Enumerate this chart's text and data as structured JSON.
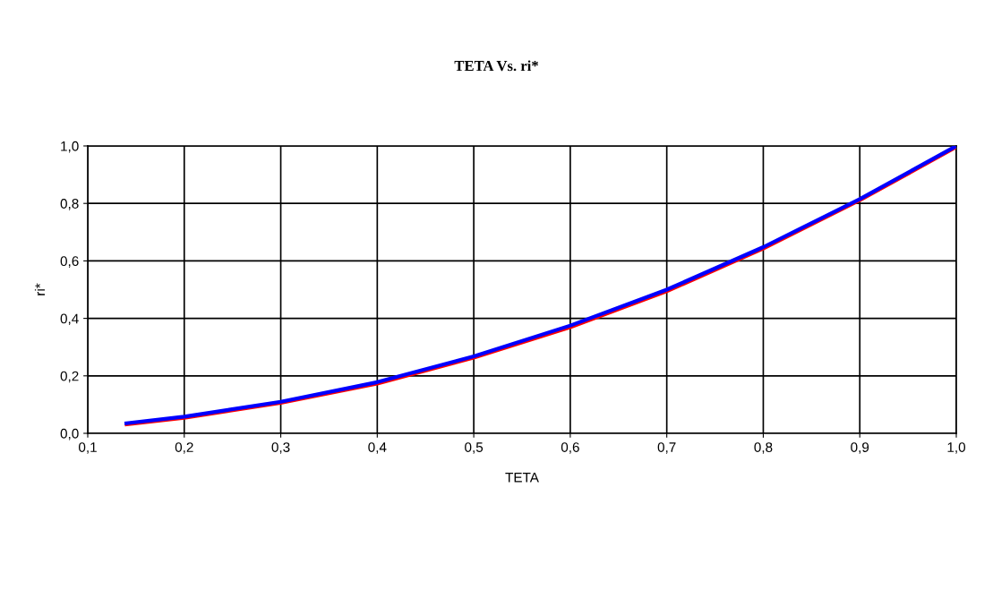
{
  "chart_data": {
    "type": "line",
    "title": "TETA Vs. ri*",
    "xlabel": "TETA",
    "ylabel": "ri*",
    "x": [
      0.14,
      0.2,
      0.3,
      0.4,
      0.5,
      0.6,
      0.7,
      0.8,
      0.9,
      1.0
    ],
    "series": [
      {
        "color": "#ff0000",
        "values": [
          0.03,
          0.053,
          0.105,
          0.172,
          0.262,
          0.368,
          0.493,
          0.642,
          0.81,
          0.995
        ]
      },
      {
        "color": "#0000ff",
        "values": [
          0.035,
          0.058,
          0.11,
          0.178,
          0.268,
          0.375,
          0.5,
          0.648,
          0.815,
          1.0
        ]
      }
    ],
    "xlim": [
      0.1,
      1.0
    ],
    "ylim": [
      0.0,
      1.0
    ],
    "xticks": [
      {
        "value": 0.1,
        "label": "0,1"
      },
      {
        "value": 0.2,
        "label": "0,2"
      },
      {
        "value": 0.3,
        "label": "0,3"
      },
      {
        "value": 0.4,
        "label": "0,4"
      },
      {
        "value": 0.5,
        "label": "0,5"
      },
      {
        "value": 0.6,
        "label": "0,6"
      },
      {
        "value": 0.7,
        "label": "0,7"
      },
      {
        "value": 0.8,
        "label": "0,8"
      },
      {
        "value": 0.9,
        "label": "0,9"
      },
      {
        "value": 1.0,
        "label": "1,0"
      }
    ],
    "yticks": [
      {
        "value": 0.0,
        "label": "0,0"
      },
      {
        "value": 0.2,
        "label": "0,2"
      },
      {
        "value": 0.4,
        "label": "0,4"
      },
      {
        "value": 0.6,
        "label": "0,6"
      },
      {
        "value": 0.8,
        "label": "0,8"
      },
      {
        "value": 1.0,
        "label": "1,0"
      }
    ],
    "grid": true,
    "marker": "none",
    "line_style": "solid"
  }
}
